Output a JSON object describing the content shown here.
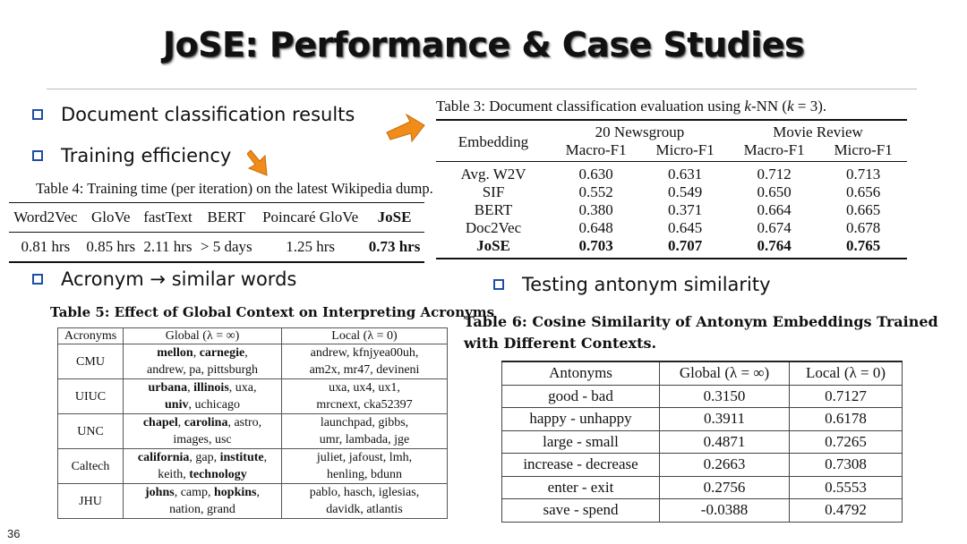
{
  "title": "JoSE: Performance & Case Studies",
  "page_number": "36",
  "colors": {
    "bullet_box": "#1e4ea8",
    "arrow": "#f08c1a"
  },
  "bullets": [
    "Document classification results",
    "Training efficiency",
    "Acronym → similar words",
    "Testing antonym similarity"
  ],
  "table3": {
    "caption_prefix": "Table 3: Document classification evaluation using ",
    "caption_k": "k",
    "caption_mid": "-NN (",
    "caption_k2": "k",
    "caption_suffix": " = 3).",
    "embedding_header": "Embedding",
    "group1": "20 Newsgroup",
    "group2": "Movie Review",
    "sub": [
      "Macro-F1",
      "Micro-F1",
      "Macro-F1",
      "Micro-F1"
    ],
    "rows": [
      [
        "Avg. W2V",
        "0.630",
        "0.631",
        "0.712",
        "0.713"
      ],
      [
        "SIF",
        "0.552",
        "0.549",
        "0.650",
        "0.656"
      ],
      [
        "BERT",
        "0.380",
        "0.371",
        "0.664",
        "0.665"
      ],
      [
        "Doc2Vec",
        "0.648",
        "0.645",
        "0.674",
        "0.678"
      ],
      [
        "JoSE",
        "0.703",
        "0.707",
        "0.764",
        "0.765"
      ]
    ]
  },
  "table4": {
    "caption": "Table 4: Training time (per iteration) on the latest Wikipedia dump.",
    "headers": [
      "Word2Vec",
      "GloVe",
      "fastText",
      "BERT",
      "Poincaré GloVe",
      "JoSE"
    ],
    "values": [
      "0.81 hrs",
      "0.85 hrs",
      "2.11 hrs",
      "> 5 days",
      "1.25 hrs",
      "0.73 hrs"
    ]
  },
  "table5": {
    "caption": "Table 5: Effect of Global Context on Interpreting Acronyms",
    "headers": [
      "Acronyms",
      "Global (λ = ∞)",
      "Local (λ = 0)"
    ],
    "rows": [
      {
        "acronym": "CMU",
        "global_bold": [
          "mellon",
          "carnegie"
        ],
        "global_line1_rest": "",
        "global_line2": "andrew, pa, pittsburgh",
        "local1": "andrew, kfnjyea00uh,",
        "local2": "am2x, mr47, devineni"
      },
      {
        "acronym": "UIUC",
        "global_bold": [
          "urbana",
          "illinois"
        ],
        "global_line1_rest": ", uxa,",
        "global_line2_bold": "univ",
        "global_line2": ", uchicago",
        "local1": "uxa, ux4, ux1,",
        "local2": "mrcnext, cka52397"
      },
      {
        "acronym": "UNC",
        "global_bold": [
          "chapel",
          "carolina"
        ],
        "global_line1_rest": ", astro,",
        "global_line2": "images, usc",
        "local1": "launchpad, gibbs,",
        "local2": "umr, lambada, jge"
      },
      {
        "acronym": "Caltech",
        "global_bold": [
          "california",
          "institute"
        ],
        "global_mid": ", gap, ",
        "global_line1_rest": ",",
        "global_line2_pre": "keith, ",
        "global_line2_bold": "technology",
        "local1": "juliet, jafoust, lmh,",
        "local2": "henling, bdunn"
      },
      {
        "acronym": "JHU",
        "global_bold": [
          "johns",
          "hopkins"
        ],
        "global_mid": ", camp, ",
        "global_line1_rest": ",",
        "global_line2": "nation, grand",
        "local1": "pablo, hasch, iglesias,",
        "local2": "davidk, atlantis"
      }
    ]
  },
  "table6": {
    "caption_line1": "Table 6: Cosine Similarity of Antonym Embeddings Trained",
    "caption_line2": "with Different Contexts.",
    "headers": [
      "Antonyms",
      "Global (λ = ∞)",
      "Local (λ = 0)"
    ],
    "rows": [
      [
        "good - bad",
        "0.3150",
        "0.7127"
      ],
      [
        "happy - unhappy",
        "0.3911",
        "0.6178"
      ],
      [
        "large - small",
        "0.4871",
        "0.7265"
      ],
      [
        "increase - decrease",
        "0.2663",
        "0.7308"
      ],
      [
        "enter - exit",
        "0.2756",
        "0.5553"
      ],
      [
        "save - spend",
        "-0.0388",
        "0.4792"
      ]
    ]
  }
}
